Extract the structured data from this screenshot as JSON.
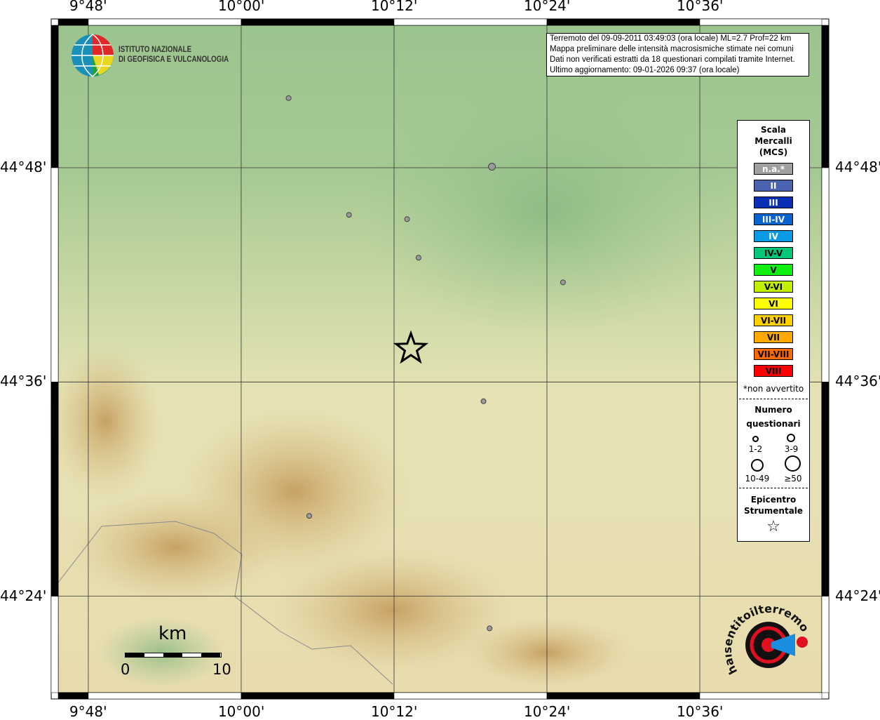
{
  "map": {
    "extent": {
      "lon_min": 9.7606,
      "lon_max": 10.7596,
      "lat_min": 44.31,
      "lat_max": 44.933
    },
    "lon_ticks": [
      {
        "value": 9.8,
        "label": "9°48'"
      },
      {
        "value": 10.0,
        "label": "10°00'"
      },
      {
        "value": 10.2,
        "label": "10°12'"
      },
      {
        "value": 10.4,
        "label": "10°24'"
      },
      {
        "value": 10.6,
        "label": "10°36'"
      }
    ],
    "lat_ticks": [
      {
        "value": 44.8,
        "label": "44°48'"
      },
      {
        "value": 44.6,
        "label": "44°36'"
      },
      {
        "value": 44.4,
        "label": "44°24'"
      }
    ],
    "epicenter": {
      "lon": 10.222,
      "lat": 44.631
    },
    "points": [
      {
        "lon": 10.062,
        "lat": 44.865,
        "intensity": "n.a.",
        "questionnaires": "1-2"
      },
      {
        "lon": 10.328,
        "lat": 44.801,
        "intensity": "n.a.",
        "questionnaires": "3-9"
      },
      {
        "lon": 10.141,
        "lat": 44.756,
        "intensity": "n.a.",
        "questionnaires": "1-2"
      },
      {
        "lon": 10.217,
        "lat": 44.752,
        "intensity": "n.a.",
        "questionnaires": "1-2"
      },
      {
        "lon": 10.232,
        "lat": 44.716,
        "intensity": "n.a.",
        "questionnaires": "1-2"
      },
      {
        "lon": 10.421,
        "lat": 44.693,
        "intensity": "n.a.",
        "questionnaires": "1-2"
      },
      {
        "lon": 10.317,
        "lat": 44.582,
        "intensity": "n.a.",
        "questionnaires": "1-2"
      },
      {
        "lon": 10.089,
        "lat": 44.475,
        "intensity": "n.a.",
        "questionnaires": "1-2"
      },
      {
        "lon": 10.325,
        "lat": 44.37,
        "intensity": "n.a.",
        "questionnaires": "1-2"
      }
    ],
    "point_color": "#9a9a9a"
  },
  "info": {
    "line1": "Terremoto del 09-09-2011 03:49:03 (ora locale) ML=2.7 Prof=22 km",
    "line2": "Mappa preliminare delle intensità macrosismiche stimate nei comuni",
    "line3": "Dati non verificati estratti da 18 questionari compilati tramite Internet.",
    "line4": "Ultimo aggiornamento: 09-01-2026 09:37 (ora locale)"
  },
  "logo_ingv": {
    "line1": "ISTITUTO NAZIONALE",
    "line2": "DI GEOFISICA E VULCANOLOGIA"
  },
  "logo_hsit": "www.haisentitoilterremoto.it",
  "legend": {
    "title1": "Scala",
    "title2": "Mercalli",
    "title3": "(MCS)",
    "classes": [
      {
        "label": "n.a.*",
        "color": "#a0a0a0"
      },
      {
        "label": "II",
        "color": "#4a62b0"
      },
      {
        "label": "III",
        "color": "#0a2fb5"
      },
      {
        "label": "III-IV",
        "color": "#0a64d0"
      },
      {
        "label": "IV",
        "color": "#0a9ae6"
      },
      {
        "label": "IV-V",
        "color": "#00c878"
      },
      {
        "label": "V",
        "color": "#10f010"
      },
      {
        "label": "V-VI",
        "color": "#c0f000"
      },
      {
        "label": "VI",
        "color": "#ffff00"
      },
      {
        "label": "VI-VII",
        "color": "#ffd000"
      },
      {
        "label": "VII",
        "color": "#ffa800"
      },
      {
        "label": "VII-VIII",
        "color": "#ff6a00"
      },
      {
        "label": "VIII",
        "color": "#ff0000"
      }
    ],
    "note": "*non avvertito",
    "q_title1": "Numero",
    "q_title2": "questionari",
    "q_classes": [
      "1-2",
      "3-9",
      "10-49",
      "≥50"
    ],
    "epi_title1": "Epicentro",
    "epi_title2": "Strumentale"
  },
  "scalebar": {
    "unit": "km",
    "min": "0",
    "max": "10"
  }
}
